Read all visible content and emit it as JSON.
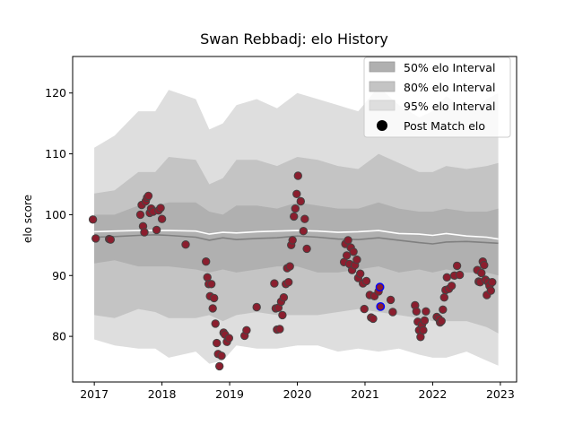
{
  "chart_data": {
    "type": "scatter",
    "title": "Swan Rebbadj: elo History",
    "xlabel": "",
    "ylabel": "elo score",
    "xlim": [
      2016.68,
      2023.24
    ],
    "ylim": [
      72.5,
      126.0
    ],
    "x_ticks": [
      2017,
      2018,
      2019,
      2020,
      2021,
      2022,
      2023
    ],
    "x_tick_labels": [
      "2017",
      "2018",
      "2019",
      "2020",
      "2021",
      "2022",
      "2023"
    ],
    "y_ticks": [
      80,
      90,
      100,
      110,
      120
    ],
    "y_tick_labels": [
      "80",
      "90",
      "100",
      "110",
      "120"
    ],
    "legend": {
      "position": "upper right",
      "entries": [
        {
          "label": "50% elo Interval",
          "color": "#b0b0b0",
          "kind": "patch"
        },
        {
          "label": "80% elo Interval",
          "color": "#c4c4c4",
          "kind": "patch"
        },
        {
          "label": "95% elo Interval",
          "color": "#dedede",
          "kind": "patch"
        },
        {
          "label": "Post Match elo",
          "color": "#000000",
          "kind": "marker"
        }
      ]
    },
    "colors": {
      "band95": "#dedede",
      "band80": "#c4c4c4",
      "band50": "#b0b0b0",
      "mean_line": "#ffffff",
      "median_line": "#808080",
      "point_fill": "#8b1e2e",
      "point_edge": "#444444",
      "highlight_edge": "#0000ff"
    },
    "bands": {
      "x": [
        2017.0,
        2017.3,
        2017.65,
        2017.9,
        2018.1,
        2018.5,
        2018.7,
        2018.9,
        2019.1,
        2019.4,
        2019.7,
        2020.0,
        2020.3,
        2020.6,
        2020.9,
        2021.2,
        2021.5,
        2021.8,
        2022.0,
        2022.2,
        2022.5,
        2022.8,
        2022.97
      ],
      "upper95": [
        111.0,
        113.0,
        117.0,
        117.0,
        120.5,
        119.0,
        114.0,
        115.0,
        118.0,
        119.0,
        117.5,
        120.0,
        119.0,
        118.0,
        117.0,
        121.0,
        118.0,
        116.0,
        117.0,
        119.5,
        117.0,
        119.0,
        120.0
      ],
      "upper80": [
        103.5,
        104.0,
        107.0,
        107.0,
        109.5,
        109.0,
        105.0,
        106.0,
        109.0,
        109.0,
        108.0,
        109.5,
        109.0,
        108.0,
        107.5,
        110.0,
        108.5,
        107.0,
        107.0,
        108.0,
        107.5,
        108.0,
        108.5
      ],
      "upper50": [
        100.0,
        100.0,
        101.5,
        101.5,
        102.0,
        102.0,
        100.5,
        100.0,
        101.5,
        101.5,
        101.0,
        102.0,
        101.5,
        101.0,
        101.0,
        102.0,
        101.0,
        100.5,
        100.5,
        101.0,
        100.5,
        100.5,
        101.0
      ],
      "mean": [
        97.2,
        97.3,
        97.4,
        97.4,
        97.4,
        97.3,
        96.8,
        97.1,
        97.0,
        97.2,
        97.3,
        97.4,
        97.3,
        97.1,
        97.2,
        97.4,
        96.9,
        96.8,
        96.6,
        96.9,
        96.5,
        96.3,
        96.0
      ],
      "median": [
        96.3,
        96.4,
        96.6,
        96.7,
        96.6,
        96.3,
        95.8,
        96.2,
        95.9,
        96.1,
        96.2,
        96.5,
        96.3,
        96.0,
        95.9,
        96.2,
        95.8,
        95.4,
        95.2,
        95.5,
        95.6,
        95.4,
        95.3
      ],
      "lower50": [
        92.0,
        92.5,
        91.5,
        91.5,
        91.5,
        91.0,
        90.5,
        91.0,
        90.5,
        91.0,
        91.5,
        91.5,
        90.5,
        90.5,
        91.0,
        91.5,
        90.5,
        91.0,
        90.5,
        91.0,
        90.5,
        90.5,
        90.0
      ],
      "lower80": [
        83.5,
        83.0,
        84.5,
        84.0,
        83.0,
        83.0,
        83.5,
        82.5,
        83.5,
        84.0,
        83.5,
        83.5,
        83.5,
        84.0,
        84.5,
        84.0,
        83.5,
        83.0,
        82.5,
        82.5,
        82.5,
        81.5,
        80.5
      ],
      "lower95": [
        79.5,
        78.5,
        78.0,
        78.0,
        76.5,
        77.5,
        75.5,
        76.0,
        78.5,
        78.0,
        78.0,
        78.5,
        78.5,
        77.5,
        78.0,
        77.5,
        78.0,
        77.0,
        76.5,
        76.5,
        77.5,
        76.0,
        75.2
      ]
    },
    "points": [
      {
        "x": 2016.98,
        "y": 99.2
      },
      {
        "x": 2017.02,
        "y": 96.1
      },
      {
        "x": 2017.22,
        "y": 96.0
      },
      {
        "x": 2017.24,
        "y": 95.9
      },
      {
        "x": 2017.68,
        "y": 100.0
      },
      {
        "x": 2017.7,
        "y": 101.6
      },
      {
        "x": 2017.72,
        "y": 98.1
      },
      {
        "x": 2017.74,
        "y": 97.1
      },
      {
        "x": 2017.76,
        "y": 102.2
      },
      {
        "x": 2017.78,
        "y": 102.8
      },
      {
        "x": 2017.8,
        "y": 103.1
      },
      {
        "x": 2017.82,
        "y": 100.3
      },
      {
        "x": 2017.84,
        "y": 101.0
      },
      {
        "x": 2017.87,
        "y": 100.5
      },
      {
        "x": 2017.92,
        "y": 97.5
      },
      {
        "x": 2017.95,
        "y": 100.7
      },
      {
        "x": 2017.98,
        "y": 101.1
      },
      {
        "x": 2018.0,
        "y": 99.3
      },
      {
        "x": 2018.35,
        "y": 95.1
      },
      {
        "x": 2018.65,
        "y": 92.3
      },
      {
        "x": 2018.67,
        "y": 89.7
      },
      {
        "x": 2018.69,
        "y": 88.6
      },
      {
        "x": 2018.71,
        "y": 86.6
      },
      {
        "x": 2018.73,
        "y": 88.6
      },
      {
        "x": 2018.75,
        "y": 84.6
      },
      {
        "x": 2018.77,
        "y": 86.3
      },
      {
        "x": 2018.79,
        "y": 82.1
      },
      {
        "x": 2018.81,
        "y": 78.9
      },
      {
        "x": 2018.83,
        "y": 77.1
      },
      {
        "x": 2018.85,
        "y": 75.1
      },
      {
        "x": 2018.88,
        "y": 76.8
      },
      {
        "x": 2018.91,
        "y": 80.6
      },
      {
        "x": 2018.93,
        "y": 80.3
      },
      {
        "x": 2018.96,
        "y": 79.1
      },
      {
        "x": 2018.99,
        "y": 79.7
      },
      {
        "x": 2019.22,
        "y": 80.1
      },
      {
        "x": 2019.25,
        "y": 81.0
      },
      {
        "x": 2019.4,
        "y": 84.8
      },
      {
        "x": 2019.66,
        "y": 88.7
      },
      {
        "x": 2019.68,
        "y": 84.6
      },
      {
        "x": 2019.7,
        "y": 81.1
      },
      {
        "x": 2019.72,
        "y": 84.7
      },
      {
        "x": 2019.74,
        "y": 81.2
      },
      {
        "x": 2019.76,
        "y": 85.7
      },
      {
        "x": 2019.78,
        "y": 83.5
      },
      {
        "x": 2019.8,
        "y": 86.4
      },
      {
        "x": 2019.83,
        "y": 88.6
      },
      {
        "x": 2019.85,
        "y": 91.2
      },
      {
        "x": 2019.87,
        "y": 88.9
      },
      {
        "x": 2019.89,
        "y": 91.5
      },
      {
        "x": 2019.91,
        "y": 95.0
      },
      {
        "x": 2019.93,
        "y": 95.8
      },
      {
        "x": 2019.95,
        "y": 99.7
      },
      {
        "x": 2019.97,
        "y": 101.0
      },
      {
        "x": 2019.99,
        "y": 103.4
      },
      {
        "x": 2020.01,
        "y": 106.4
      },
      {
        "x": 2020.05,
        "y": 102.2
      },
      {
        "x": 2020.09,
        "y": 97.3
      },
      {
        "x": 2020.11,
        "y": 99.3
      },
      {
        "x": 2020.14,
        "y": 94.4
      },
      {
        "x": 2020.69,
        "y": 92.2
      },
      {
        "x": 2020.71,
        "y": 95.2
      },
      {
        "x": 2020.73,
        "y": 93.3
      },
      {
        "x": 2020.75,
        "y": 95.8
      },
      {
        "x": 2020.77,
        "y": 91.9
      },
      {
        "x": 2020.79,
        "y": 94.6
      },
      {
        "x": 2020.81,
        "y": 90.9
      },
      {
        "x": 2020.83,
        "y": 93.9
      },
      {
        "x": 2020.85,
        "y": 91.7
      },
      {
        "x": 2020.88,
        "y": 92.6
      },
      {
        "x": 2020.9,
        "y": 89.6
      },
      {
        "x": 2020.93,
        "y": 90.3
      },
      {
        "x": 2020.97,
        "y": 88.7
      },
      {
        "x": 2020.99,
        "y": 84.5
      },
      {
        "x": 2021.02,
        "y": 89.1
      },
      {
        "x": 2021.07,
        "y": 86.8
      },
      {
        "x": 2021.09,
        "y": 83.1
      },
      {
        "x": 2021.12,
        "y": 82.9
      },
      {
        "x": 2021.14,
        "y": 86.6
      },
      {
        "x": 2021.2,
        "y": 87.4
      },
      {
        "x": 2021.38,
        "y": 86.0
      },
      {
        "x": 2021.41,
        "y": 84.0
      },
      {
        "x": 2021.74,
        "y": 85.1
      },
      {
        "x": 2021.76,
        "y": 84.1
      },
      {
        "x": 2021.78,
        "y": 82.4
      },
      {
        "x": 2021.8,
        "y": 81.0
      },
      {
        "x": 2021.82,
        "y": 79.9
      },
      {
        "x": 2021.84,
        "y": 81.9
      },
      {
        "x": 2021.86,
        "y": 81.0
      },
      {
        "x": 2021.88,
        "y": 82.6
      },
      {
        "x": 2021.9,
        "y": 84.1
      },
      {
        "x": 2022.06,
        "y": 83.2
      },
      {
        "x": 2022.09,
        "y": 82.9
      },
      {
        "x": 2022.11,
        "y": 82.3
      },
      {
        "x": 2022.13,
        "y": 82.5
      },
      {
        "x": 2022.15,
        "y": 84.4
      },
      {
        "x": 2022.17,
        "y": 86.4
      },
      {
        "x": 2022.19,
        "y": 87.6
      },
      {
        "x": 2022.21,
        "y": 89.7
      },
      {
        "x": 2022.24,
        "y": 87.8
      },
      {
        "x": 2022.28,
        "y": 88.3
      },
      {
        "x": 2022.32,
        "y": 90.0
      },
      {
        "x": 2022.36,
        "y": 91.6
      },
      {
        "x": 2022.4,
        "y": 90.1
      },
      {
        "x": 2022.66,
        "y": 90.9
      },
      {
        "x": 2022.68,
        "y": 89.0
      },
      {
        "x": 2022.7,
        "y": 88.9
      },
      {
        "x": 2022.72,
        "y": 90.4
      },
      {
        "x": 2022.74,
        "y": 92.3
      },
      {
        "x": 2022.76,
        "y": 91.7
      },
      {
        "x": 2022.78,
        "y": 89.3
      },
      {
        "x": 2022.8,
        "y": 86.8
      },
      {
        "x": 2022.82,
        "y": 88.9
      },
      {
        "x": 2022.84,
        "y": 88.3
      },
      {
        "x": 2022.86,
        "y": 87.5
      },
      {
        "x": 2022.88,
        "y": 88.9
      }
    ],
    "highlight_points": [
      {
        "x": 2021.22,
        "y": 88.1
      },
      {
        "x": 2021.23,
        "y": 84.9
      }
    ]
  }
}
